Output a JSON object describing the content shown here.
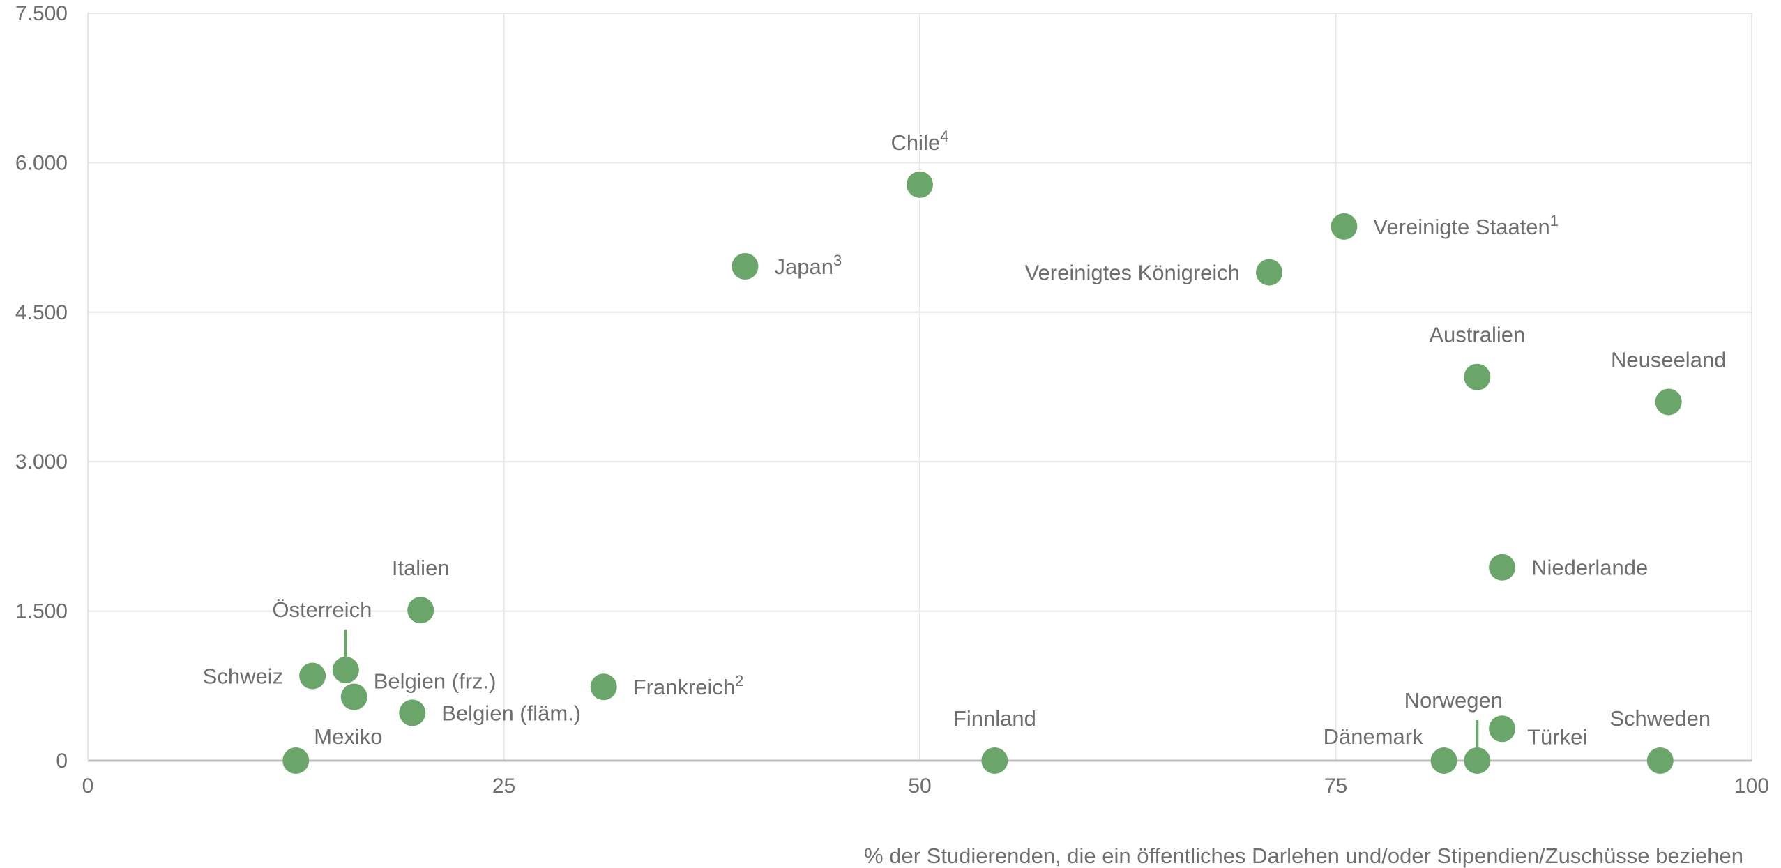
{
  "chart_data": {
    "type": "scatter",
    "title": "",
    "xlabel": "% der Studierenden, die ein öffentliches Darlehen und/oder Stipendien/Zuschüsse beziehen",
    "ylabel": "",
    "xlim": [
      0,
      100
    ],
    "ylim": [
      0,
      7500
    ],
    "grid": true,
    "x_ticks": [
      {
        "value": 0,
        "label": "0"
      },
      {
        "value": 25,
        "label": "25"
      },
      {
        "value": 50,
        "label": "50"
      },
      {
        "value": 75,
        "label": "75"
      },
      {
        "value": 100,
        "label": "100"
      }
    ],
    "y_ticks": [
      {
        "value": 0,
        "label": "0"
      },
      {
        "value": 1500,
        "label": "1.500"
      },
      {
        "value": 3000,
        "label": "3.000"
      },
      {
        "value": 4500,
        "label": "4.500"
      },
      {
        "value": 6000,
        "label": "6.000"
      },
      {
        "value": 7500,
        "label": "7.500"
      }
    ],
    "color": "#6aa66a",
    "points": [
      {
        "label": "Chile",
        "sup": "4",
        "x": 50,
        "y": 5780,
        "label_pos": "above"
      },
      {
        "label": "Japan",
        "sup": "3",
        "x": 39.5,
        "y": 4960,
        "label_pos": "right"
      },
      {
        "label": "Vereinigte Staaten",
        "sup": "1",
        "x": 75.5,
        "y": 5360,
        "label_pos": "right"
      },
      {
        "label": "Vereinigtes Königreich",
        "sup": "",
        "x": 71,
        "y": 4900,
        "label_pos": "left"
      },
      {
        "label": "Australien",
        "sup": "",
        "x": 83.5,
        "y": 3850,
        "label_pos": "above"
      },
      {
        "label": "Neuseeland",
        "sup": "",
        "x": 95,
        "y": 3600,
        "label_pos": "above"
      },
      {
        "label": "Niederlande",
        "sup": "",
        "x": 85,
        "y": 1940,
        "label_pos": "right"
      },
      {
        "label": "Italien",
        "sup": "",
        "x": 20,
        "y": 1510,
        "label_pos": "above"
      },
      {
        "label": "Österreich",
        "sup": "",
        "x": 15.5,
        "y": 910,
        "label_pos": "leader-above"
      },
      {
        "label": "Schweiz",
        "sup": "",
        "x": 13.5,
        "y": 850,
        "label_pos": "left"
      },
      {
        "label": "Belgien (frz.)",
        "sup": "",
        "x": 16,
        "y": 640,
        "label_pos": "right-up"
      },
      {
        "label": "Frankreich",
        "sup": "2",
        "x": 31,
        "y": 740,
        "label_pos": "right"
      },
      {
        "label": "Belgien (fläm.)",
        "sup": "",
        "x": 19.5,
        "y": 480,
        "label_pos": "right"
      },
      {
        "label": "Mexiko",
        "sup": "",
        "x": 12.5,
        "y": 0,
        "label_pos": "above-right"
      },
      {
        "label": "Finnland",
        "sup": "",
        "x": 54.5,
        "y": 0,
        "label_pos": "above"
      },
      {
        "label": "Dänemark",
        "sup": "",
        "x": 81.5,
        "y": 0,
        "label_pos": "above-left"
      },
      {
        "label": "Norwegen",
        "sup": "",
        "x": 83.5,
        "y": 0,
        "label_pos": "leader-above"
      },
      {
        "label": "Türkei",
        "sup": "",
        "x": 85,
        "y": 320,
        "label_pos": "below-right"
      },
      {
        "label": "Schweden",
        "sup": "",
        "x": 94.5,
        "y": 0,
        "label_pos": "above"
      }
    ]
  }
}
